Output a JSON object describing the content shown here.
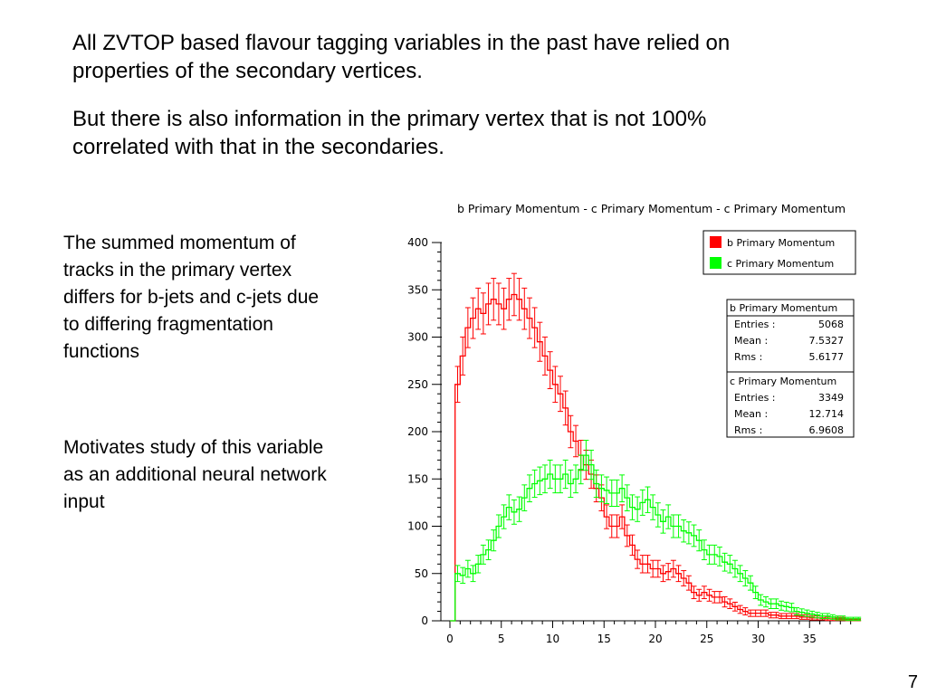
{
  "slide": {
    "paragraphs": [
      "All ZVTOP based flavour tagging variables in the past have relied on properties of the secondary vertices.",
      "But there is also information in the primary vertex that is not 100% correlated with that in the secondaries."
    ],
    "side_notes": [
      "The summed momentum of tracks in the primary vertex differs for b-jets and c-jets due to differing fragmentation functions",
      "Motivates study of this variable as an additional neural network input"
    ],
    "page_number": "7"
  },
  "chart_data": {
    "type": "histogram",
    "title": "b Primary Momentum - c Primary Momentum - c Primary Momentum",
    "xlabel": "",
    "ylabel": "",
    "xlim": [
      -1.5,
      40
    ],
    "ylim": [
      0,
      400
    ],
    "xticks": [
      0,
      5,
      10,
      15,
      20,
      25,
      30,
      35
    ],
    "yticks": [
      0,
      50,
      100,
      150,
      200,
      250,
      300,
      350,
      400
    ],
    "bin_width": 0.5,
    "legend_position": "top-right",
    "series": [
      {
        "name": "b Primary Momentum",
        "color": "#ff0000",
        "values": [
          0,
          250,
          280,
          310,
          320,
          330,
          325,
          335,
          340,
          335,
          330,
          340,
          345,
          340,
          330,
          320,
          310,
          295,
          280,
          265,
          250,
          240,
          225,
          200,
          190,
          175,
          165,
          155,
          140,
          130,
          110,
          100,
          100,
          110,
          90,
          80,
          65,
          60,
          60,
          55,
          55,
          50,
          52,
          55,
          50,
          45,
          40,
          30,
          27,
          30,
          27,
          25,
          25,
          20,
          18,
          15,
          12,
          10,
          8,
          8,
          8,
          8,
          6,
          6,
          5,
          5,
          5,
          5,
          4,
          4,
          3,
          3,
          3,
          2,
          2,
          2,
          2,
          1,
          1,
          1
        ]
      },
      {
        "name": "c Primary Momentum",
        "color": "#00ff00",
        "values": [
          0,
          50,
          48,
          55,
          50,
          60,
          70,
          75,
          85,
          100,
          110,
          120,
          115,
          118,
          130,
          140,
          145,
          148,
          150,
          155,
          150,
          150,
          155,
          145,
          150,
          160,
          175,
          165,
          145,
          140,
          138,
          135,
          135,
          140,
          130,
          120,
          118,
          125,
          128,
          120,
          112,
          105,
          110,
          100,
          100,
          95,
          93,
          90,
          85,
          75,
          70,
          70,
          68,
          62,
          60,
          55,
          50,
          45,
          40,
          30,
          22,
          20,
          18,
          18,
          16,
          15,
          14,
          10,
          9,
          8,
          7,
          6,
          5,
          5,
          4,
          3,
          3,
          2,
          2,
          2
        ]
      }
    ],
    "stats": [
      {
        "name": "b Primary Momentum",
        "entries_label": "Entries :",
        "entries": "5068",
        "mean_label": "Mean :",
        "mean": "7.5327",
        "rms_label": "Rms :",
        "rms": "5.6177"
      },
      {
        "name": "c Primary Momentum",
        "entries_label": "Entries :",
        "entries": "3349",
        "mean_label": "Mean :",
        "mean": "12.714",
        "rms_label": "Rms :",
        "rms": "6.9608"
      }
    ]
  }
}
